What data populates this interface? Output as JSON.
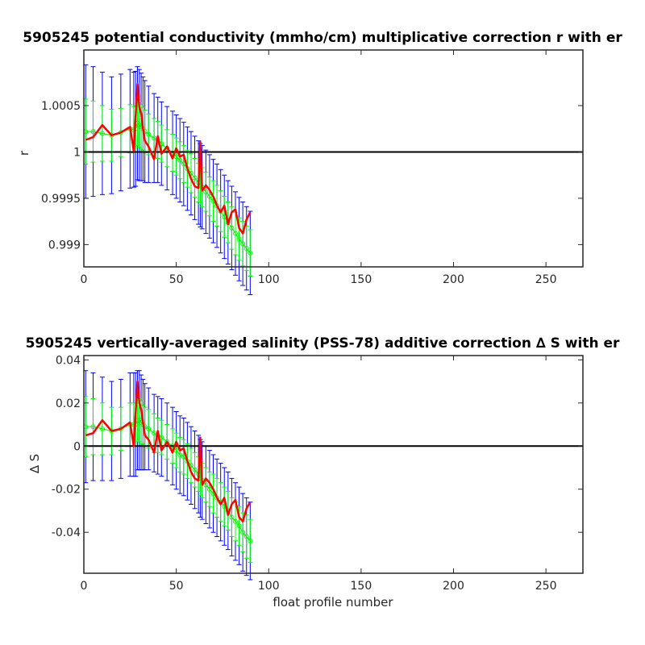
{
  "colors": {
    "error_bar_outer": "#0000ff",
    "error_bar_inner": "#00ff00",
    "correction_line": "#ff0000",
    "reference_line": "#000000"
  },
  "chart_data": [
    {
      "type": "line",
      "title": "5905245 potential conductivity (mmho/cm) multiplicative correction r with er",
      "xlabel": "",
      "ylabel": "r",
      "xlim": [
        0,
        270
      ],
      "ylim": [
        0.99876,
        1.0011
      ],
      "xticks": [
        0,
        50,
        100,
        150,
        200,
        250
      ],
      "xtick_labels": [
        "0",
        "50",
        "100",
        "150",
        "200",
        "250"
      ],
      "yticks": [
        0.999,
        0.9995,
        1,
        1.0005
      ],
      "ytick_labels": [
        "0.999",
        "0.9995",
        "1",
        "1.0005"
      ],
      "reference_line": 1,
      "grid": false,
      "x": [
        1,
        5,
        10,
        15,
        20,
        25,
        27,
        28,
        29,
        30,
        31,
        32,
        33,
        35,
        38,
        40,
        42,
        45,
        48,
        50,
        52,
        54,
        56,
        58,
        60,
        62,
        63,
        64,
        66,
        68,
        70,
        72,
        74,
        76,
        78,
        80,
        82,
        84,
        86,
        88,
        90
      ],
      "series": [
        {
          "values": [
            1.00013,
            1.00016,
            1.00029,
            1.00018,
            1.00021,
            1.00027,
            1.00001,
            1.00038,
            1.00073,
            1.00048,
            1.00042,
            1.00025,
            1.00012,
            1.00006,
            0.99992,
            1.00017,
            0.99998,
            1.00006,
            0.99993,
            1.00004,
            0.99995,
            0.99997,
            0.99982,
            0.99971,
            0.99963,
            0.99961,
            1.00011,
            0.99958,
            0.99964,
            0.99959,
            0.99952,
            0.99942,
            0.99935,
            0.99942,
            0.99922,
            0.99935,
            0.99938,
            0.99918,
            0.99912,
            0.99927,
            0.99935
          ]
        },
        {
          "center": [
            1.00022,
            1.00022,
            1.0002,
            1.00018,
            1.00021,
            1.00025,
            1.00024,
            1.00025,
            1.00031,
            1.00029,
            1.00027,
            1.00025,
            1.00022,
            1.00019,
            1.00015,
            1.00013,
            1.00009,
            1.00004,
            0.99999,
            0.99995,
            0.99991,
            0.99987,
            0.99982,
            0.99977,
            0.99972,
            0.99967,
            0.99964,
            0.99962,
            0.99957,
            0.99952,
            0.99947,
            0.99942,
            0.99936,
            0.9993,
            0.99924,
            0.99918,
            0.99912,
            0.99906,
            0.99901,
            0.99896,
            0.99891
          ],
          "inner_error": [
            0.00035,
            0.00033,
            0.0003,
            0.00028,
            0.00026,
            0.00026,
            0.00025,
            0.00025,
            0.00024,
            0.00024,
            0.00024,
            0.00023,
            0.00023,
            0.00022,
            0.00021,
            0.0002,
            0.0002,
            0.0002,
            0.0002,
            0.0002,
            0.0002,
            0.0002,
            0.0002,
            0.00021,
            0.00021,
            0.00021,
            0.00021,
            0.00021,
            0.00021,
            0.00021,
            0.00022,
            0.00022,
            0.00022,
            0.00022,
            0.00022,
            0.00023,
            0.00023,
            0.00023,
            0.00024,
            0.00024,
            0.00025
          ],
          "outer_error": [
            0.00072,
            0.0007,
            0.00066,
            0.00063,
            0.00063,
            0.00064,
            0.00062,
            0.00062,
            0.00061,
            0.0006,
            0.00058,
            0.00056,
            0.00055,
            0.00052,
            0.00048,
            0.00046,
            0.00045,
            0.00045,
            0.00045,
            0.00045,
            0.00045,
            0.00045,
            0.00045,
            0.00045,
            0.00045,
            0.00045,
            0.00045,
            0.00045,
            0.00045,
            0.00045,
            0.00045,
            0.00045,
            0.00045,
            0.00045,
            0.00045,
            0.00045,
            0.00045,
            0.00045,
            0.00045,
            0.00045,
            0.00045
          ]
        }
      ]
    },
    {
      "type": "line",
      "title": "5905245 vertically-averaged salinity (PSS-78) additive correction ∆ S with er",
      "xlabel": "float profile number",
      "ylabel": "∆ S",
      "xlim": [
        0,
        270
      ],
      "ylim": [
        -0.059,
        0.042
      ],
      "xticks": [
        0,
        50,
        100,
        150,
        200,
        250
      ],
      "xtick_labels": [
        "0",
        "50",
        "100",
        "150",
        "200",
        "250"
      ],
      "yticks": [
        -0.04,
        -0.02,
        0,
        0.02,
        0.04
      ],
      "ytick_labels": [
        "-0.04",
        "-0.02",
        "0",
        "0.02",
        "0.04"
      ],
      "reference_line": 0,
      "grid": false,
      "x": [
        1,
        5,
        10,
        15,
        20,
        25,
        27,
        28,
        29,
        30,
        31,
        32,
        33,
        35,
        38,
        40,
        42,
        45,
        48,
        50,
        52,
        54,
        56,
        58,
        60,
        62,
        63,
        64,
        66,
        68,
        70,
        72,
        74,
        76,
        78,
        80,
        82,
        84,
        86,
        88,
        90
      ],
      "series": [
        {
          "values": [
            0.005,
            0.006,
            0.012,
            0.007,
            0.008,
            0.011,
            0.0,
            0.015,
            0.03,
            0.02,
            0.017,
            0.011,
            0.005,
            0.003,
            -0.003,
            0.007,
            -0.002,
            0.002,
            -0.003,
            0.002,
            -0.002,
            -0.001,
            -0.007,
            -0.012,
            -0.015,
            -0.016,
            0.004,
            -0.018,
            -0.015,
            -0.017,
            -0.02,
            -0.024,
            -0.027,
            -0.024,
            -0.032,
            -0.027,
            -0.025,
            -0.033,
            -0.035,
            -0.029,
            -0.026
          ]
        },
        {
          "center": [
            0.009,
            0.009,
            0.008,
            0.007,
            0.008,
            0.01,
            0.01,
            0.01,
            0.012,
            0.012,
            0.011,
            0.01,
            0.009,
            0.008,
            0.006,
            0.005,
            0.004,
            0.002,
            0.0,
            -0.002,
            -0.004,
            -0.005,
            -0.007,
            -0.009,
            -0.011,
            -0.013,
            -0.015,
            -0.016,
            -0.018,
            -0.02,
            -0.022,
            -0.024,
            -0.026,
            -0.028,
            -0.03,
            -0.033,
            -0.035,
            -0.037,
            -0.04,
            -0.042,
            -0.044
          ],
          "inner_error": [
            0.014,
            0.013,
            0.012,
            0.011,
            0.01,
            0.01,
            0.01,
            0.01,
            0.01,
            0.01,
            0.01,
            0.009,
            0.009,
            0.009,
            0.009,
            0.008,
            0.008,
            0.008,
            0.008,
            0.008,
            0.008,
            0.008,
            0.008,
            0.008,
            0.008,
            0.008,
            0.008,
            0.008,
            0.008,
            0.008,
            0.009,
            0.009,
            0.009,
            0.009,
            0.009,
            0.009,
            0.009,
            0.009,
            0.009,
            0.01,
            0.01
          ],
          "outer_error": [
            0.026,
            0.025,
            0.024,
            0.023,
            0.023,
            0.024,
            0.024,
            0.024,
            0.023,
            0.023,
            0.022,
            0.021,
            0.02,
            0.019,
            0.018,
            0.018,
            0.018,
            0.018,
            0.018,
            0.018,
            0.018,
            0.018,
            0.018,
            0.018,
            0.018,
            0.018,
            0.018,
            0.018,
            0.018,
            0.018,
            0.018,
            0.018,
            0.018,
            0.018,
            0.018,
            0.018,
            0.018,
            0.018,
            0.018,
            0.018,
            0.018
          ]
        }
      ]
    }
  ]
}
